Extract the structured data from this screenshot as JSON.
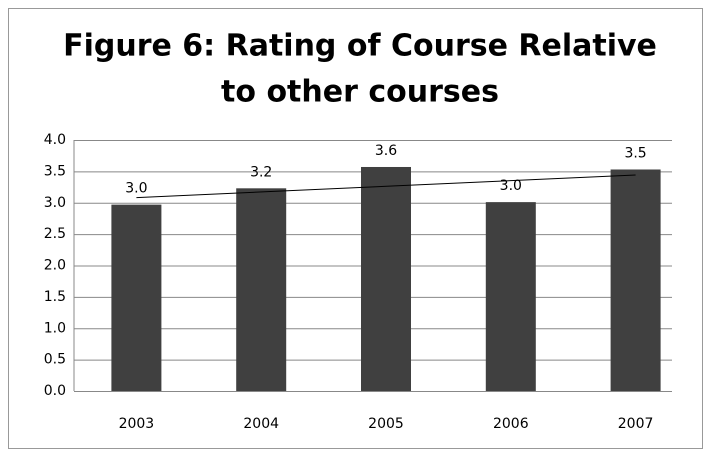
{
  "chart_data": {
    "type": "bar",
    "title": [
      "Figure 6: Rating of Course Relative",
      "to other courses"
    ],
    "categories": [
      "2003",
      "2004",
      "2005",
      "2006",
      "2007"
    ],
    "values": [
      2.97,
      3.23,
      3.57,
      3.01,
      3.53
    ],
    "value_labels": [
      "3.0",
      "3.2",
      "3.6",
      "3.0",
      "3.5"
    ],
    "color": "#404040",
    "ylim": [
      0,
      4
    ],
    "yticks": [
      {
        "value": 0,
        "label": "0.0"
      },
      0.5,
      {
        "value": 1,
        "label": "1.0"
      },
      1.5,
      {
        "value": 2,
        "label": "2.0"
      },
      2.5,
      {
        "value": 3,
        "label": "3.0"
      },
      3.5,
      {
        "value": 4,
        "label": "4.0"
      }
    ],
    "grid": true,
    "trendline": "linear"
  }
}
